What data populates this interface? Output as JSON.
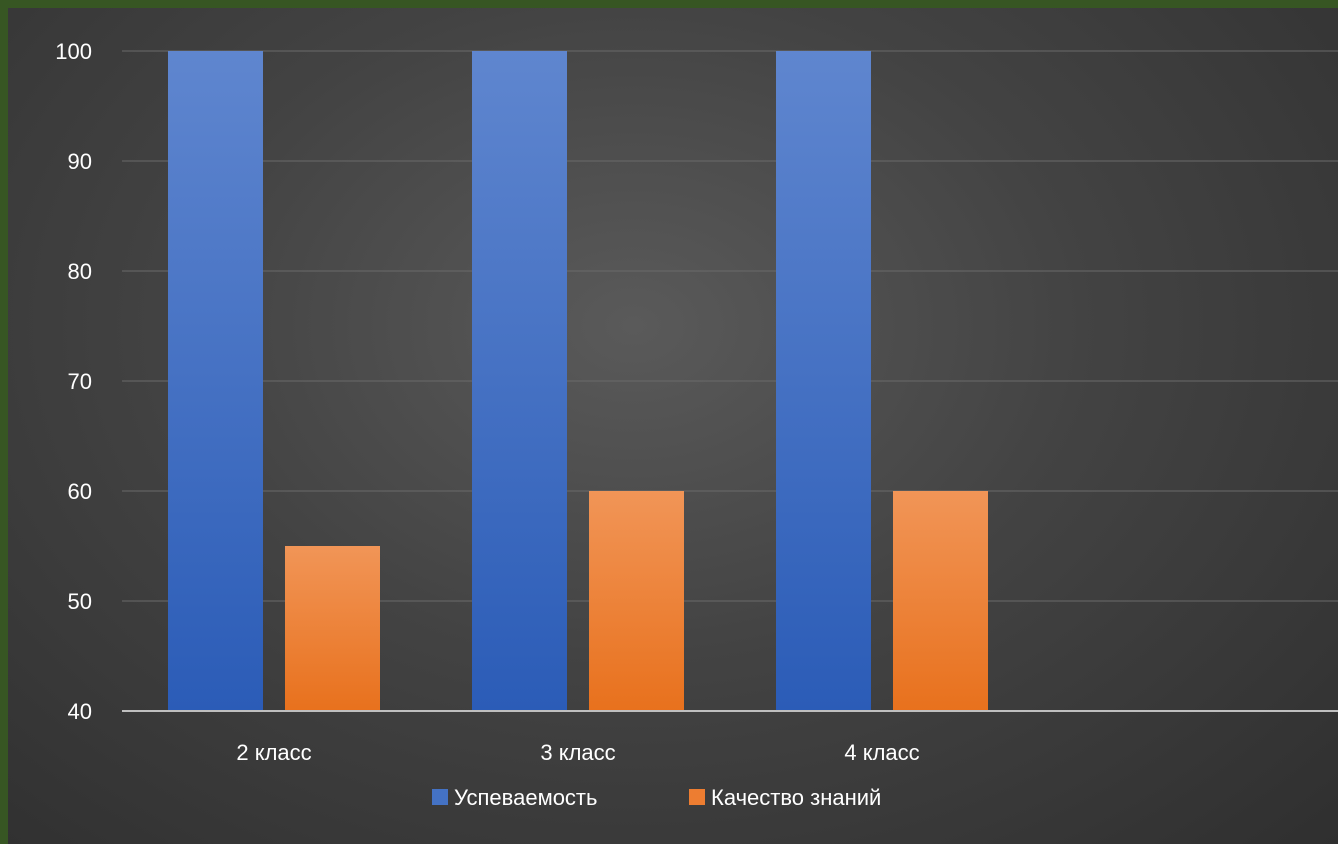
{
  "chart_data": {
    "type": "bar",
    "categories": [
      "2 класс",
      "3 класс",
      "4 класс",
      ""
    ],
    "series": [
      {
        "name": "Успеваемость",
        "values": [
          100,
          100,
          100,
          null
        ],
        "color": "#4472c4"
      },
      {
        "name": "Качество знаний",
        "values": [
          55,
          60,
          60,
          null
        ],
        "color": "#ed7d31"
      }
    ],
    "ylim": [
      40,
      100
    ],
    "yticks": [
      40,
      50,
      60,
      70,
      80,
      90,
      100
    ],
    "grid": true,
    "legend": "bottom",
    "title": "",
    "xlabel": "",
    "ylabel": ""
  }
}
